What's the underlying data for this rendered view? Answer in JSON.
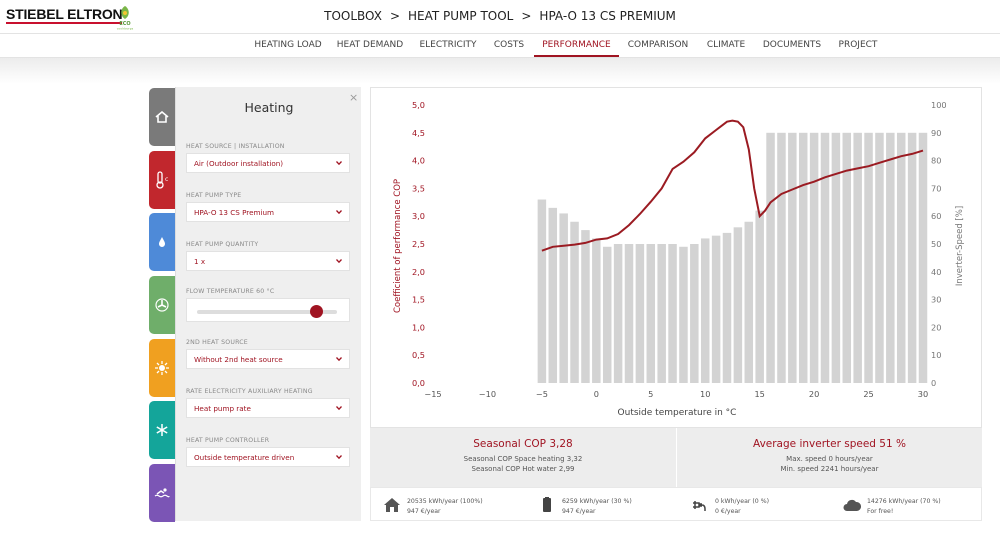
{
  "header": {
    "brand": "STIEBEL ELTRON",
    "eco_logo": "eco-leaf-icon",
    "eco_text": "cooldoorps",
    "breadcrumb": [
      "TOOLBOX",
      "HEAT PUMP TOOL",
      "HPA-O 13 CS PREMIUM"
    ],
    "separator": ">"
  },
  "nav": {
    "items": [
      "HEATING LOAD",
      "HEAT DEMAND",
      "ELECTRICITY",
      "COSTS",
      "PERFORMANCE",
      "COMPARISON",
      "CLIMATE",
      "DOCUMENTS",
      "PROJECT"
    ],
    "active": "PERFORMANCE"
  },
  "side_tabs": [
    {
      "icon": "house-icon",
      "color": "#7a7a7a"
    },
    {
      "icon": "thermometer-icon",
      "color": "#c1272d"
    },
    {
      "icon": "water-drop-icon",
      "color": "#4e8ad8"
    },
    {
      "icon": "fan-icon",
      "color": "#6fae6a"
    },
    {
      "icon": "sun-icon",
      "color": "#f0a020"
    },
    {
      "icon": "snowflake-icon",
      "color": "#14a59a"
    },
    {
      "icon": "pool-icon",
      "color": "#7b55b5"
    }
  ],
  "panel": {
    "title": "Heating",
    "close": "×",
    "fields": [
      {
        "label": "HEAT SOURCE | INSTALLATION",
        "value": "Air (Outdoor installation)"
      },
      {
        "label": "HEAT PUMP TYPE",
        "value": "HPA-O 13 CS Premium"
      },
      {
        "label": "HEAT PUMP QUANTITY",
        "value": "1 x"
      },
      {
        "label": "FLOW TEMPERATURE 60 °C",
        "slider": 0.85
      },
      {
        "label": "2ND HEAT SOURCE",
        "value": "Without 2nd heat source"
      },
      {
        "label": "RATE ELECTRICITY AUXILIARY HEATING",
        "value": "Heat pump rate"
      },
      {
        "label": "HEAT PUMP CONTROLLER",
        "value": "Outside temperature driven"
      }
    ]
  },
  "chart_data": {
    "type": "bar",
    "xlabel": "Outside temperature in °C",
    "ylabel": "Coefficient of performance COP",
    "y2label": "Inverter-Speed [%]",
    "xlim": [
      -15,
      30
    ],
    "ylim": [
      0,
      5
    ],
    "y2lim": [
      0,
      100
    ],
    "xticks": [
      -15,
      -10,
      -5,
      0,
      5,
      10,
      15,
      20,
      25,
      30
    ],
    "yticks": [
      "0,0",
      "0,5",
      "1,0",
      "1,5",
      "2,0",
      "2,5",
      "3,0",
      "3,5",
      "4,0",
      "4,5",
      "5,0"
    ],
    "y2ticks": [
      0,
      10,
      20,
      30,
      40,
      50,
      60,
      70,
      80,
      90,
      100
    ],
    "grid": false,
    "bar_series": {
      "name": "Inverter-Speed",
      "axis": "right",
      "color": "#d3d3d3",
      "x": [
        -5,
        -4,
        -3,
        -2,
        -1,
        0,
        1,
        2,
        3,
        4,
        5,
        6,
        7,
        8,
        9,
        10,
        11,
        12,
        13,
        14,
        15,
        16,
        17,
        18,
        19,
        20,
        21,
        22,
        23,
        24,
        25,
        26,
        27,
        28,
        29,
        30
      ],
      "values": [
        66,
        63,
        61,
        58,
        55,
        52,
        49,
        50,
        50,
        50,
        50,
        50,
        50,
        49,
        50,
        52,
        53,
        54,
        56,
        58,
        62,
        90,
        90,
        90,
        90,
        90,
        90,
        90,
        90,
        90,
        90,
        90,
        90,
        90,
        90,
        90
      ]
    },
    "line_series": {
      "name": "COP",
      "axis": "left",
      "color": "#9b1b22",
      "x": [
        -5,
        -4,
        -3,
        -2,
        -1,
        0,
        1,
        2,
        3,
        4,
        5,
        6,
        7,
        8,
        9,
        10,
        11,
        12,
        12.5,
        13,
        13.5,
        14,
        14.5,
        15,
        15.5,
        16,
        17,
        18,
        19,
        20,
        21,
        22,
        23,
        24,
        25,
        26,
        27,
        28,
        29,
        30
      ],
      "values": [
        2.38,
        2.45,
        2.47,
        2.49,
        2.52,
        2.58,
        2.6,
        2.68,
        2.84,
        3.04,
        3.26,
        3.5,
        3.85,
        3.98,
        4.15,
        4.4,
        4.55,
        4.7,
        4.72,
        4.7,
        4.6,
        4.2,
        3.5,
        3.0,
        3.1,
        3.25,
        3.4,
        3.48,
        3.56,
        3.62,
        3.7,
        3.76,
        3.82,
        3.86,
        3.9,
        3.96,
        4.02,
        4.08,
        4.12,
        4.18
      ]
    }
  },
  "stats": {
    "left": {
      "title": "Seasonal COP 3,28",
      "lines": [
        "Seasonal COP Space heating 3,32",
        "Seasonal COP Hot water 2,99"
      ]
    },
    "right": {
      "title": "Average inverter speed 51 %",
      "lines": [
        "Max. speed 0 hours/year",
        "Min. speed 2241 hours/year"
      ]
    }
  },
  "energy": [
    {
      "icon": "house-icon",
      "line1": "20535 kWh/year (100%)",
      "line2": "947 €/year"
    },
    {
      "icon": "battery-icon",
      "line1": "6259 kWh/year (30 %)",
      "line2": "947 €/year"
    },
    {
      "icon": "plug-icon",
      "line1": "0 kWh/year (0 %)",
      "line2": "0 €/year"
    },
    {
      "icon": "cloud-icon",
      "line1": "14276 kWh/year (70 %)",
      "line2": "For free!"
    }
  ]
}
